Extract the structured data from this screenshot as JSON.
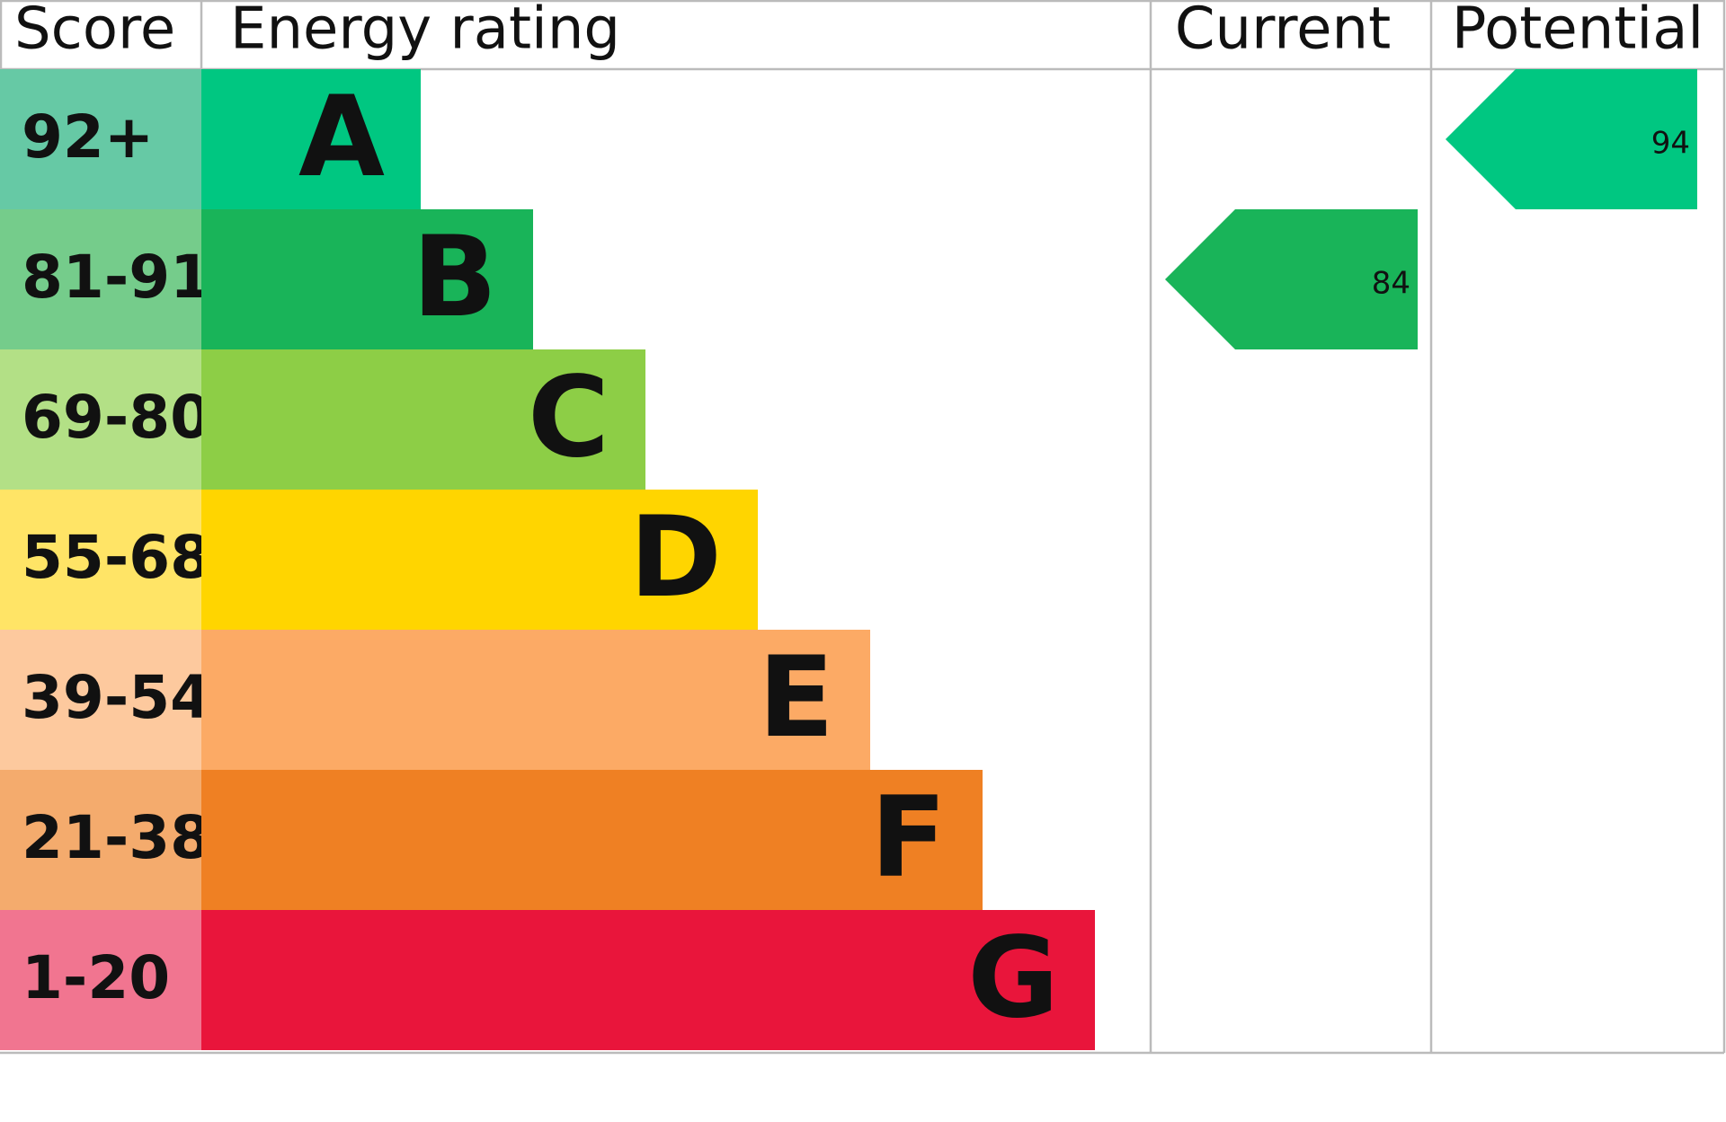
{
  "header": {
    "score": "Score",
    "rating": "Energy rating",
    "current": "Current",
    "potential": "Potential"
  },
  "bands": [
    {
      "score": "92+",
      "letter": "A",
      "color": "#00c781",
      "score_color": "#66c9a5"
    },
    {
      "score": "81-91",
      "letter": "B",
      "color": "#19b459",
      "score_color": "#75cc8b"
    },
    {
      "score": "69-80",
      "letter": "C",
      "color": "#8dce46",
      "score_color": "#b3e086"
    },
    {
      "score": "55-68",
      "letter": "D",
      "color": "#ffd500",
      "score_color": "#ffe466"
    },
    {
      "score": "39-54",
      "letter": "E",
      "color": "#fcaa65",
      "score_color": "#fdc99e"
    },
    {
      "score": "21-38",
      "letter": "F",
      "color": "#ef8023",
      "score_color": "#f4ab6d"
    },
    {
      "score": "1-20",
      "letter": "G",
      "color": "#e9153b",
      "score_color": "#f17590"
    }
  ],
  "current": 84,
  "potential": 94
}
